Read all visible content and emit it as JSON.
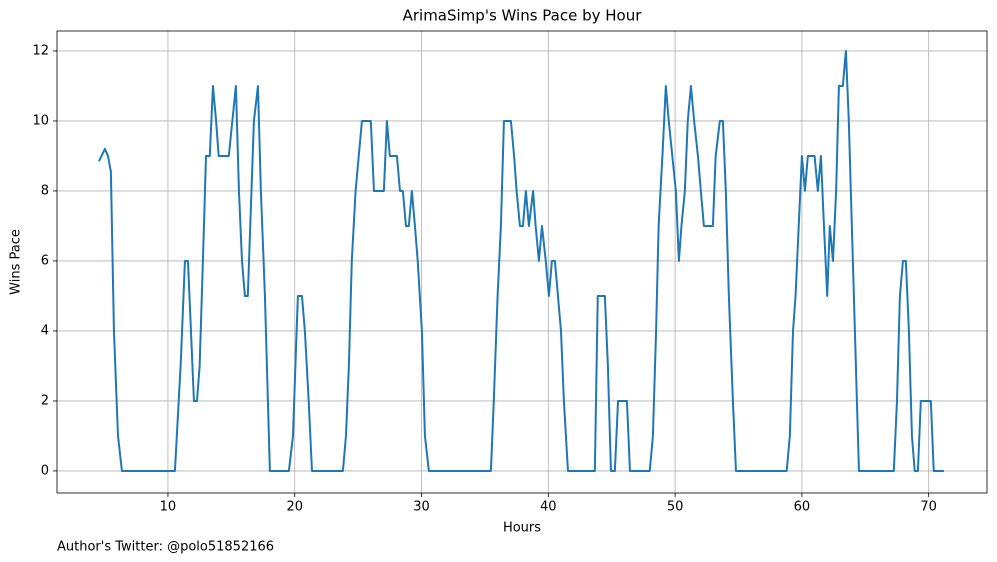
{
  "chart_data": {
    "type": "line",
    "title": "ArimaSimp's Wins Pace by Hour",
    "xlabel": "Hours",
    "ylabel": "Wins Pace",
    "footnote": "Author's Twitter: @polo51852166",
    "color": "#1f77b4",
    "grid": true,
    "xlim": [
      1.25,
      74.6
    ],
    "ylim": [
      -0.63,
      12.57
    ],
    "xticks": [
      10,
      20,
      30,
      40,
      50,
      60,
      70
    ],
    "yticks": [
      0,
      2,
      4,
      6,
      8,
      10,
      12
    ],
    "x": [
      4.56,
      5.03,
      5.27,
      5.5,
      5.74,
      6.06,
      6.37,
      10.55,
      11.0,
      11.34,
      11.58,
      12.05,
      12.29,
      12.5,
      12.8,
      13.0,
      13.3,
      13.55,
      13.8,
      14.0,
      14.8,
      15.36,
      15.6,
      15.84,
      16.07,
      16.3,
      16.78,
      17.1,
      17.33,
      17.65,
      18.04,
      19.54,
      19.86,
      20.1,
      20.25,
      20.57,
      20.8,
      21.1,
      21.36,
      23.8,
      24.04,
      24.27,
      24.5,
      24.8,
      25.3,
      26.0,
      26.25,
      27.03,
      27.27,
      27.5,
      28.06,
      28.3,
      28.53,
      28.77,
      29.0,
      29.24,
      29.48,
      29.7,
      30.03,
      30.27,
      30.58,
      35.47,
      35.7,
      36.0,
      36.26,
      36.5,
      37.05,
      37.3,
      37.5,
      37.76,
      38.0,
      38.23,
      38.47,
      38.8,
      39.0,
      39.26,
      39.5,
      39.8,
      40.05,
      40.28,
      40.52,
      40.76,
      41.0,
      41.23,
      41.55,
      43.67,
      43.9,
      44.46,
      44.7,
      44.94,
      45.25,
      45.5,
      46.2,
      46.44,
      48.0,
      48.25,
      48.5,
      48.7,
      49.0,
      49.27,
      49.5,
      50.06,
      50.3,
      50.5,
      50.77,
      51.0,
      51.25,
      51.5,
      51.8,
      52.03,
      52.27,
      52.98,
      53.2,
      53.53,
      53.77,
      54.0,
      54.24,
      54.56,
      54.8,
      58.8,
      59.05,
      59.3,
      59.5,
      59.75,
      60.0,
      60.24,
      60.47,
      61.0,
      61.26,
      61.5,
      61.74,
      62.0,
      62.2,
      62.45,
      62.7,
      62.92,
      63.23,
      63.47,
      63.7,
      63.94,
      64.18,
      64.5,
      67.25,
      67.5,
      67.73,
      67.97,
      68.2,
      68.44,
      68.68,
      68.9,
      69.15,
      69.38,
      70.17,
      70.4,
      71.2
    ],
    "values": [
      8.85,
      9.2,
      9.0,
      8.55,
      4,
      1,
      0,
      0,
      3,
      6,
      6,
      2,
      2,
      3,
      6.5,
      9,
      9,
      11,
      10,
      9,
      9,
      11,
      8,
      6,
      5,
      5,
      10,
      11,
      8,
      5,
      0,
      0,
      1,
      3.5,
      5,
      5,
      4,
      2,
      0,
      0,
      1,
      3,
      6,
      8,
      10,
      10,
      8,
      8,
      10,
      9,
      9,
      8,
      8,
      7,
      7,
      8,
      7,
      6,
      4,
      1,
      0,
      0,
      2,
      5,
      7,
      10,
      10,
      9,
      8,
      7,
      7,
      8,
      7,
      8,
      7,
      6,
      7,
      6,
      5,
      6,
      6,
      5,
      4,
      2,
      0,
      0,
      5,
      5,
      3,
      0,
      0,
      2,
      2,
      0,
      0,
      1,
      4,
      7,
      9,
      11,
      10,
      8,
      6,
      7,
      8,
      10,
      11,
      10,
      9,
      8,
      7,
      7,
      9,
      10,
      10,
      8,
      5,
      2,
      0,
      0,
      1,
      4,
      5,
      7,
      9,
      8,
      9,
      9,
      8,
      9,
      7,
      5,
      7,
      6,
      8,
      11,
      11,
      12,
      10,
      7,
      4,
      0,
      0,
      2,
      5,
      6,
      6,
      4,
      1,
      0,
      0,
      2,
      2,
      0,
      0
    ]
  }
}
